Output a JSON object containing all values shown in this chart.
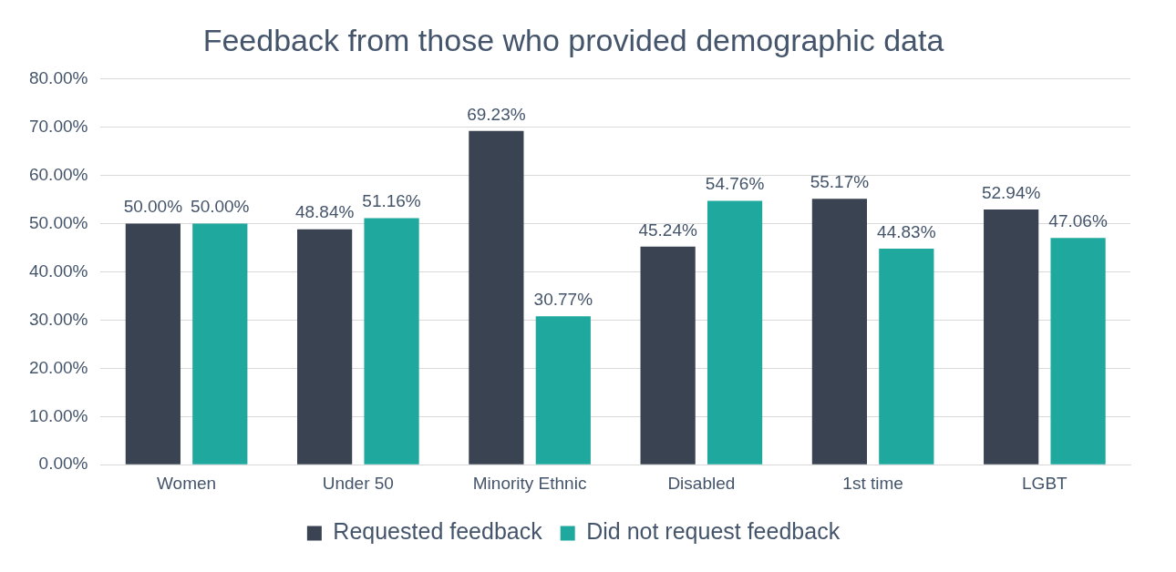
{
  "chart_data": {
    "type": "bar",
    "title": "Feedback from those who provided demographic data",
    "categories": [
      "Women",
      "Under 50",
      "Minority Ethnic",
      "Disabled",
      "1st time",
      "LGBT"
    ],
    "series": [
      {
        "name": "Requested feedback",
        "color": "#3a4352",
        "values": [
          50.0,
          48.84,
          69.23,
          45.24,
          55.17,
          52.94
        ],
        "value_labels": [
          "50.00%",
          "48.84%",
          "69.23%",
          "45.24%",
          "55.17%",
          "52.94%"
        ]
      },
      {
        "name": "Did not request feedback",
        "color": "#1ea89e",
        "values": [
          50.0,
          51.16,
          30.77,
          54.76,
          44.83,
          47.06
        ],
        "value_labels": [
          "50.00%",
          "51.16%",
          "30.77%",
          "54.76%",
          "44.83%",
          "47.06%"
        ]
      }
    ],
    "ylim": [
      0,
      80
    ],
    "yticks": [
      {
        "value": 0,
        "label": "0.00%"
      },
      {
        "value": 10,
        "label": "10.00%"
      },
      {
        "value": 20,
        "label": "20.00%"
      },
      {
        "value": 30,
        "label": "30.00%"
      },
      {
        "value": 40,
        "label": "40.00%"
      },
      {
        "value": 50,
        "label": "50.00%"
      },
      {
        "value": 60,
        "label": "60.00%"
      },
      {
        "value": 70,
        "label": "70.00%"
      },
      {
        "value": 80,
        "label": "80.00%"
      }
    ],
    "grid": "y",
    "legend": "bottom"
  }
}
